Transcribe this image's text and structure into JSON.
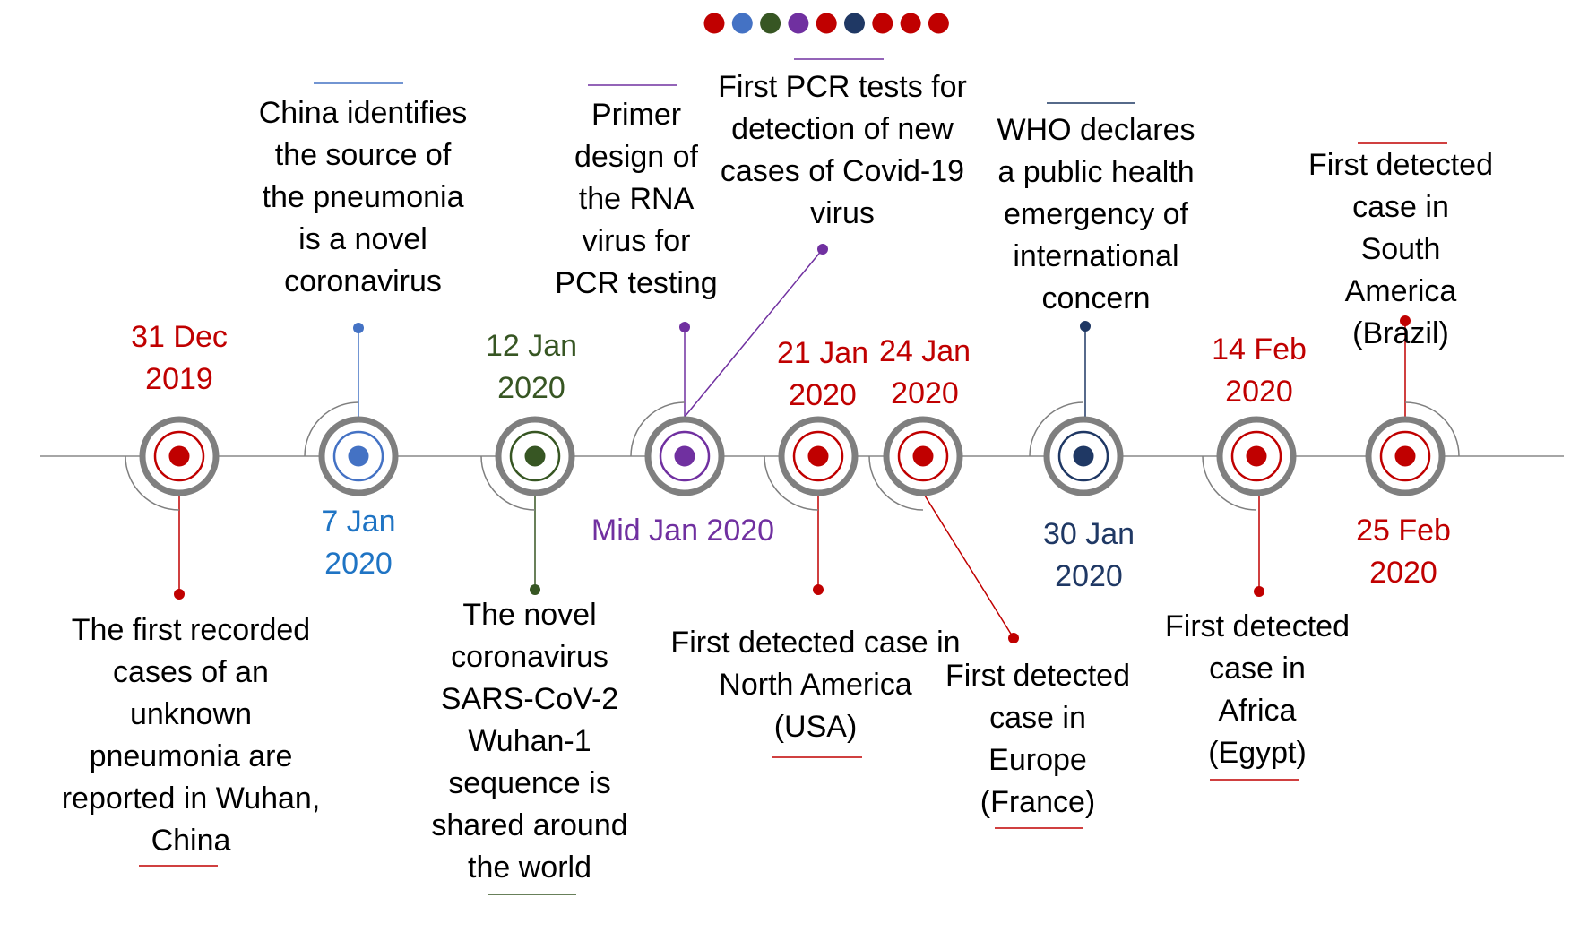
{
  "colors": {
    "red": "#c00000",
    "blue": "#4472c4",
    "blue_text": "#1f74c4",
    "green": "#375623",
    "purple": "#7030a0",
    "navy": "#1f3864",
    "gray_ring": "#7f7f7f",
    "axis": "#a6a6a6"
  },
  "legend_dots": [
    "red",
    "blue",
    "green",
    "purple",
    "red",
    "navy",
    "red",
    "red",
    "red"
  ],
  "events": [
    {
      "id": "dec31",
      "color": "red",
      "date": [
        "31 Dec",
        "2019"
      ],
      "description": [
        "The first recorded",
        "cases of an",
        "unknown",
        "pneumonia are",
        "reported in Wuhan,",
        "China"
      ]
    },
    {
      "id": "jan7",
      "color": "blue",
      "date": [
        "7 Jan",
        "2020"
      ],
      "description": [
        "China identifies",
        "the source of",
        "the pneumonia",
        "is a novel",
        "coronavirus"
      ]
    },
    {
      "id": "jan12",
      "color": "green",
      "date": [
        "12 Jan",
        "2020"
      ],
      "description": [
        "The novel",
        "coronavirus",
        "SARS-CoV-2",
        "Wuhan-1",
        "sequence is",
        "shared around",
        "the world"
      ]
    },
    {
      "id": "midjan",
      "color": "purple",
      "date": [
        "Mid Jan 2020"
      ],
      "description": [
        "Primer",
        "design of",
        "the RNA",
        "virus for",
        "PCR testing"
      ],
      "secondary_description": [
        "First PCR tests for",
        "detection of new",
        "cases of Covid-19",
        "virus"
      ]
    },
    {
      "id": "jan21",
      "color": "red",
      "date": [
        "21 Jan",
        "2020"
      ],
      "description": [
        "First detected case in",
        "North America",
        "(USA)"
      ]
    },
    {
      "id": "jan24",
      "color": "red",
      "date": [
        "24 Jan",
        "2020"
      ],
      "description": [
        "First detected",
        "case in",
        "Europe",
        "(France)"
      ]
    },
    {
      "id": "jan30",
      "color": "navy",
      "date": [
        "30 Jan",
        "2020"
      ],
      "description": [
        "WHO declares",
        "a public health",
        "emergency of",
        "international",
        "concern"
      ]
    },
    {
      "id": "feb14",
      "color": "red",
      "date": [
        "14 Feb",
        "2020"
      ],
      "description": [
        "First detected",
        "case in",
        "Africa",
        "(Egypt)"
      ]
    },
    {
      "id": "feb25",
      "color": "red",
      "date": [
        "25 Feb",
        "2020"
      ],
      "description": [
        "First detected",
        "case in",
        "South America",
        "(Brazil)"
      ]
    }
  ]
}
